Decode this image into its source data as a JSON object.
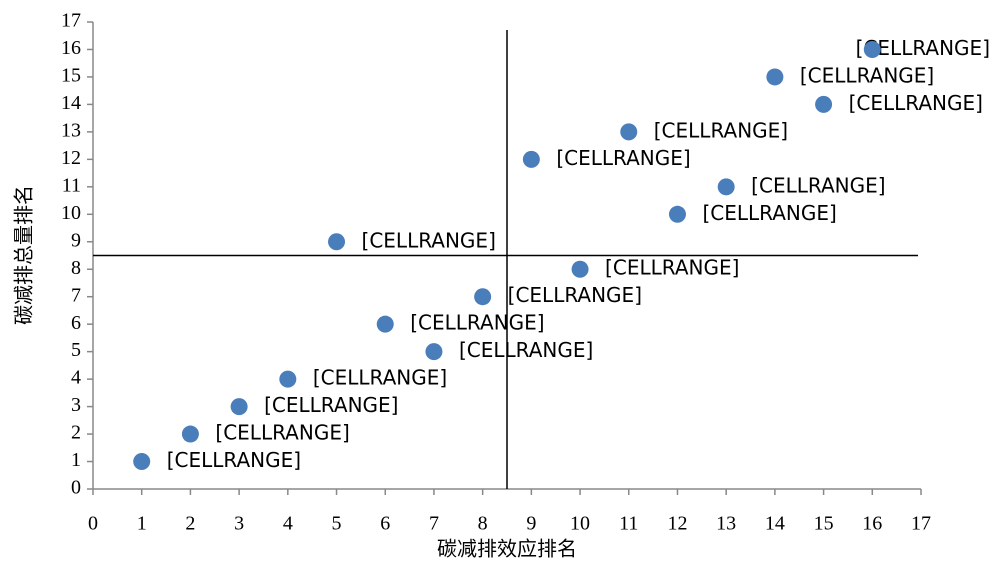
{
  "chart_data": {
    "type": "scatter",
    "xlabel": "碳减排效应排名",
    "ylabel": "碳减排总量排名",
    "x": [
      1,
      2,
      3,
      4,
      5,
      6,
      7,
      8,
      9,
      10,
      11,
      12,
      13,
      14,
      15,
      16
    ],
    "series": [
      {
        "color": "#4a7ebb",
        "values": [
          1,
          2,
          3,
          4,
          9,
          6,
          5,
          7,
          12,
          8,
          13,
          10,
          11,
          15,
          14,
          16
        ]
      }
    ],
    "point_labels": [
      "[CELLRANGE]",
      "[CELLRANGE]",
      "[CELLRANGE]",
      "[CELLRANGE]",
      "[CELLRANGE]",
      "[CELLRANGE]",
      "[CELLRANGE]",
      "[CELLRANGE]",
      "[CELLRANGE]",
      "[CELLRANGE]",
      "[CELLRANGE]",
      "[CELLRANGE]",
      "[CELLRANGE]",
      "[CELLRANGE]",
      "[CELLRANGE]",
      "[CELLRANGE]"
    ],
    "reference_lines": {
      "x": 8.5,
      "y": 8.5
    },
    "xlim": [
      0,
      17
    ],
    "xticks": [
      0,
      1,
      2,
      3,
      4,
      5,
      6,
      7,
      8,
      9,
      10,
      11,
      12,
      13,
      14,
      15,
      16,
      17
    ],
    "ylim": [
      0,
      17
    ],
    "yticks": [
      0,
      1,
      2,
      3,
      4,
      5,
      6,
      7,
      8,
      9,
      10,
      11,
      12,
      13,
      14,
      15,
      16,
      17
    ],
    "grid": false
  }
}
